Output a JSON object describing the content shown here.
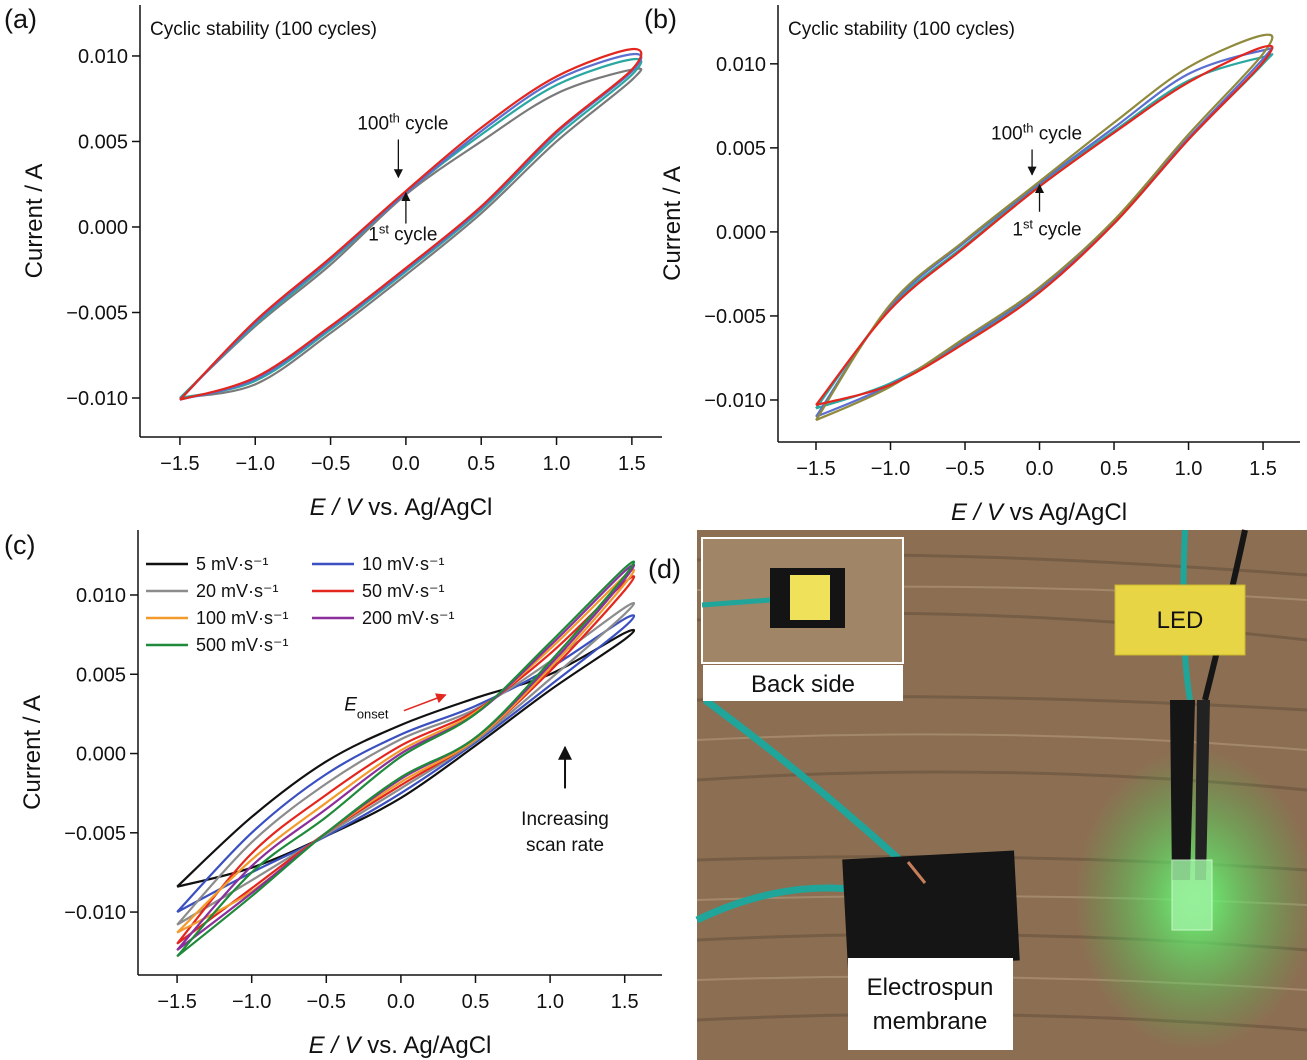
{
  "chart_data": [
    {
      "type": "line",
      "panel_label": "(a)",
      "subtitle": "Cyclic stability (100 cycles)",
      "x_label": {
        "italic": "E / V",
        "rest": " vs. Ag/AgCl"
      },
      "y_label": "Current / A",
      "xlim": [
        -1.765,
        1.7
      ],
      "ylim": [
        -0.01228,
        0.01298
      ],
      "xticks": [
        {
          "value": -1.5,
          "label": "−1.5"
        },
        {
          "value": -1.0,
          "label": "−1.0"
        },
        {
          "value": -0.5,
          "label": "−0.5"
        },
        {
          "value": 0.0,
          "label": "0.0"
        },
        {
          "value": 0.5,
          "label": "0.5"
        },
        {
          "value": 1.0,
          "label": "1.0"
        },
        {
          "value": 1.5,
          "label": "1.5"
        }
      ],
      "yticks": [
        {
          "value": -0.01,
          "label": "−0.010"
        },
        {
          "value": -0.005,
          "label": "−0.005"
        },
        {
          "value": 0.0,
          "label": "0.000"
        },
        {
          "value": 0.005,
          "label": "0.005"
        },
        {
          "value": 0.01,
          "label": "0.010"
        }
      ],
      "annotations": [
        {
          "main": "100",
          "sup": "th",
          "rest": " cycle"
        },
        {
          "main": "1",
          "sup": "st",
          "rest": " cycle"
        }
      ],
      "series": [
        {
          "color": "#7a7a7a",
          "x": [
            -1.5,
            -1,
            -0.5,
            0,
            0.5,
            1,
            1.5,
            1.5,
            1,
            0.5,
            0,
            -0.5,
            -1,
            -1.5
          ],
          "values": [
            -0.01,
            -0.0058,
            -0.0022,
            0.0019,
            0.005,
            0.0078,
            0.0092,
            0.0086,
            0.005,
            0.0008,
            -0.0028,
            -0.0062,
            -0.0092,
            -0.01
          ]
        },
        {
          "color": "#2aa8a0",
          "x": [
            -1.5,
            -1,
            -0.5,
            0,
            0.5,
            1,
            1.5,
            1.5,
            1,
            0.5,
            0,
            -0.5,
            -1,
            -1.5
          ],
          "values": [
            -0.01,
            -0.0057,
            -0.002,
            0.002,
            0.0054,
            0.0083,
            0.0098,
            0.0089,
            0.0053,
            0.001,
            -0.0026,
            -0.006,
            -0.009,
            -0.01
          ]
        },
        {
          "color": "#5b6fd0",
          "x": [
            -1.5,
            -1,
            -0.5,
            0,
            0.5,
            1,
            1.5,
            1.5,
            1,
            0.5,
            0,
            -0.5,
            -1,
            -1.5
          ],
          "values": [
            -0.0101,
            -0.0056,
            -0.0019,
            0.002,
            0.0056,
            0.0086,
            0.0101,
            0.0091,
            0.0055,
            0.0011,
            -0.0025,
            -0.0059,
            -0.0089,
            -0.0101
          ]
        },
        {
          "color": "#e3261e",
          "x": [
            -1.5,
            -1,
            -0.5,
            0,
            0.5,
            1,
            1.5,
            1.5,
            1,
            0.5,
            0,
            -0.5,
            -1,
            -1.5
          ],
          "values": [
            -0.0101,
            -0.0055,
            -0.0018,
            0.0021,
            0.0058,
            0.0088,
            0.0104,
            0.0092,
            0.0056,
            0.0012,
            -0.0024,
            -0.0058,
            -0.0088,
            -0.0101
          ]
        }
      ]
    },
    {
      "type": "line",
      "panel_label": "(b)",
      "subtitle": "Cyclic stability (100 cycles)",
      "x_label": {
        "italic": "E / V",
        "rest": " vs Ag/AgCl"
      },
      "y_label": "Current / A",
      "xlim": [
        -1.755,
        1.748
      ],
      "ylim": [
        -0.0125,
        0.0135
      ],
      "xticks": [
        {
          "value": -1.5,
          "label": "−1.5"
        },
        {
          "value": -1.0,
          "label": "−1.0"
        },
        {
          "value": -0.5,
          "label": "−0.5"
        },
        {
          "value": 0.0,
          "label": "0.0"
        },
        {
          "value": 0.5,
          "label": "0.5"
        },
        {
          "value": 1.0,
          "label": "1.0"
        },
        {
          "value": 1.5,
          "label": "1.5"
        }
      ],
      "yticks": [
        {
          "value": -0.01,
          "label": "−0.010"
        },
        {
          "value": -0.005,
          "label": "−0.005"
        },
        {
          "value": 0.0,
          "label": "0.000"
        },
        {
          "value": 0.005,
          "label": "0.005"
        },
        {
          "value": 0.01,
          "label": "0.010"
        }
      ],
      "annotations": [
        {
          "main": "100",
          "sup": "th",
          "rest": " cycle"
        },
        {
          "main": "1",
          "sup": "st",
          "rest": " cycle"
        }
      ],
      "series": [
        {
          "color": "#2aa8a0",
          "x": [
            -1.5,
            -1,
            -0.5,
            0,
            0.5,
            1,
            1.5,
            1.5,
            1,
            0.5,
            0,
            -0.5,
            -1,
            -1.5
          ],
          "values": [
            -0.0105,
            -0.0045,
            -0.0008,
            0.0028,
            0.006,
            0.009,
            0.0104,
            0.01,
            0.0055,
            0.0005,
            -0.0035,
            -0.0065,
            -0.009,
            -0.0105
          ]
        },
        {
          "color": "#5b6fd0",
          "x": [
            -1.5,
            -1,
            -0.5,
            0,
            0.5,
            1,
            1.5,
            1.5,
            1,
            0.5,
            0,
            -0.5,
            -1,
            -1.5
          ],
          "values": [
            -0.011,
            -0.0044,
            -0.0006,
            0.0029,
            0.0062,
            0.0094,
            0.0108,
            0.0103,
            0.0056,
            0.0006,
            -0.0034,
            -0.0064,
            -0.0091,
            -0.011
          ]
        },
        {
          "color": "#8f8a3c",
          "x": [
            -1.5,
            -1,
            -0.5,
            0,
            0.5,
            1,
            1.5,
            1.5,
            1,
            0.5,
            0,
            -0.5,
            -1,
            -1.5
          ],
          "values": [
            -0.0112,
            -0.0043,
            -0.0005,
            0.003,
            0.0065,
            0.0098,
            0.0117,
            0.0106,
            0.0058,
            0.0007,
            -0.0033,
            -0.0063,
            -0.0092,
            -0.0112
          ]
        },
        {
          "color": "#e3261e",
          "x": [
            -1.5,
            -1,
            -0.5,
            0,
            0.5,
            1,
            1.5,
            1.5,
            1,
            0.5,
            0,
            -0.5,
            -1,
            -1.5
          ],
          "values": [
            -0.0103,
            -0.0046,
            -0.0009,
            0.0027,
            0.0059,
            0.0089,
            0.011,
            0.0101,
            0.0055,
            0.0005,
            -0.0036,
            -0.0066,
            -0.0091,
            -0.0103
          ]
        }
      ]
    },
    {
      "type": "line",
      "panel_label": "(c)",
      "x_label": {
        "italic": "E / V",
        "rest": " vs. Ag/AgCl"
      },
      "y_label": "Current / A",
      "xlim": [
        -1.762,
        1.75
      ],
      "ylim": [
        -0.01397,
        0.0141
      ],
      "xticks": [
        {
          "value": -1.5,
          "label": "−1.5"
        },
        {
          "value": -1.0,
          "label": "−1.0"
        },
        {
          "value": -0.5,
          "label": "−0.5"
        },
        {
          "value": 0.0,
          "label": "0.0"
        },
        {
          "value": 0.5,
          "label": "0.5"
        },
        {
          "value": 1.0,
          "label": "1.0"
        },
        {
          "value": 1.5,
          "label": "1.5"
        }
      ],
      "yticks": [
        {
          "value": -0.01,
          "label": "−0.010"
        },
        {
          "value": -0.005,
          "label": "−0.005"
        },
        {
          "value": 0.0,
          "label": "0.000"
        },
        {
          "value": 0.005,
          "label": "0.005"
        },
        {
          "value": 0.01,
          "label": "0.010"
        }
      ],
      "onset_label": {
        "main": "E",
        "sub": "onset"
      },
      "scan_annotation": [
        "Increasing",
        "scan rate"
      ],
      "series": [
        {
          "name": "5 mV·s⁻¹",
          "color": "#111111",
          "x": [
            -1.5,
            -1,
            -0.5,
            0,
            0.5,
            1,
            1.5,
            1.5,
            1,
            0.5,
            0,
            -0.5,
            -1,
            -1.5
          ],
          "values": [
            -0.0084,
            -0.004,
            -0.0005,
            0.0018,
            0.0035,
            0.005,
            0.0076,
            0.0072,
            0.004,
            0.0005,
            -0.0028,
            -0.0052,
            -0.0072,
            -0.0084
          ]
        },
        {
          "name": "10 mV·s⁻¹",
          "color": "#3a4fc0",
          "x": [
            -1.5,
            -1,
            -0.5,
            0,
            0.5,
            1,
            1.5,
            1.5,
            1,
            0.5,
            0,
            -0.5,
            -1,
            -1.5
          ],
          "values": [
            -0.01,
            -0.005,
            -0.0013,
            0.0012,
            0.003,
            0.0054,
            0.0085,
            0.008,
            0.0043,
            0.0007,
            -0.0025,
            -0.0052,
            -0.0075,
            -0.01
          ]
        },
        {
          "name": "20 mV·s⁻¹",
          "color": "#8c8c8c",
          "x": [
            -1.5,
            -1,
            -0.5,
            0,
            0.5,
            1,
            1.5,
            1.5,
            1,
            0.5,
            0,
            -0.5,
            -1,
            -1.5
          ],
          "values": [
            -0.0108,
            -0.0056,
            -0.0019,
            0.0009,
            0.0028,
            0.0058,
            0.0092,
            0.0088,
            0.0047,
            0.0008,
            -0.0022,
            -0.0051,
            -0.008,
            -0.0108
          ]
        },
        {
          "name": "50 mV·s⁻¹",
          "color": "#e3261e",
          "x": [
            -1.5,
            -1,
            -0.5,
            0,
            0.5,
            1,
            1.5,
            1.5,
            1,
            0.5,
            0,
            -0.5,
            -1,
            -1.5
          ],
          "values": [
            -0.012,
            -0.0063,
            -0.0026,
            0.0005,
            0.0027,
            0.0063,
            0.0108,
            0.0103,
            0.0052,
            0.0009,
            -0.002,
            -0.005,
            -0.0085,
            -0.012
          ]
        },
        {
          "name": "100 mV·s⁻¹",
          "color": "#f39a2c",
          "x": [
            -1.5,
            -1,
            -0.5,
            0,
            0.5,
            1,
            1.5,
            1.5,
            1,
            0.5,
            0,
            -0.5,
            -1,
            -1.5
          ],
          "values": [
            -0.0113,
            -0.0067,
            -0.0031,
            0.0002,
            0.0026,
            0.0066,
            0.0112,
            0.0107,
            0.0054,
            0.0009,
            -0.0018,
            -0.005,
            -0.0087,
            -0.0113
          ]
        },
        {
          "name": "200 mV·s⁻¹",
          "color": "#8a2f9c",
          "x": [
            -1.5,
            -1,
            -0.5,
            0,
            0.5,
            1,
            1.5,
            1.5,
            1,
            0.5,
            0,
            -0.5,
            -1,
            -1.5
          ],
          "values": [
            -0.0124,
            -0.0071,
            -0.0035,
            0.0,
            0.0025,
            0.0068,
            0.0115,
            0.011,
            0.0056,
            0.001,
            -0.0016,
            -0.005,
            -0.0088,
            -0.0124
          ]
        },
        {
          "name": "500 mV·s⁻¹",
          "color": "#1f8a3a",
          "x": [
            -1.5,
            -1,
            -0.5,
            0,
            0.5,
            1,
            1.5,
            1.5,
            1,
            0.5,
            0,
            -0.5,
            -1,
            -1.5
          ],
          "values": [
            -0.0128,
            -0.0075,
            -0.004,
            -0.0002,
            0.0025,
            0.007,
            0.0117,
            0.0112,
            0.0058,
            0.001,
            -0.0015,
            -0.005,
            -0.009,
            -0.0128
          ]
        }
      ]
    }
  ],
  "photo": {
    "panel_label": "(d)",
    "inset_label": "Back side",
    "led_label": "LED",
    "membrane_label": [
      "Electrospun",
      "membrane"
    ]
  }
}
